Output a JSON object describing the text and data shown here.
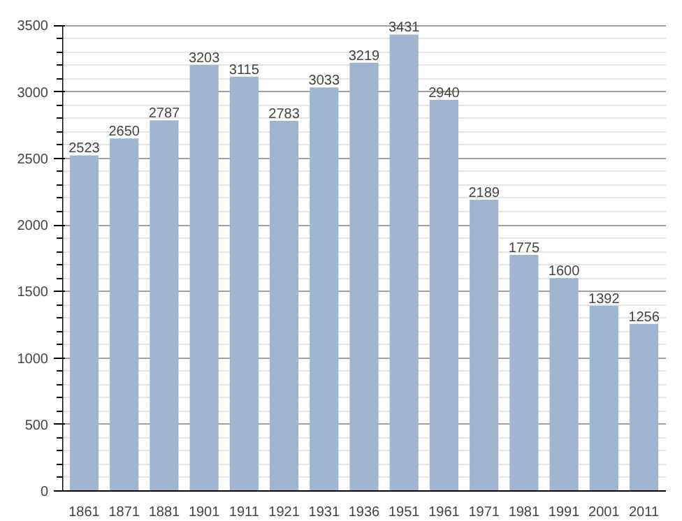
{
  "chart_data": {
    "type": "bar",
    "categories": [
      "1861",
      "1871",
      "1881",
      "1901",
      "1911",
      "1921",
      "1931",
      "1936",
      "1951",
      "1961",
      "1971",
      "1981",
      "1991",
      "2001",
      "2011"
    ],
    "values": [
      2523,
      2650,
      2787,
      3203,
      3115,
      2783,
      3033,
      3219,
      3431,
      2940,
      2189,
      1775,
      1600,
      1392,
      1256
    ],
    "color": "#a0b6d0",
    "ylim": [
      0,
      3500
    ],
    "yticks": [
      0,
      500,
      1000,
      1500,
      2000,
      2500,
      3000,
      3500
    ],
    "grid": "y",
    "data_labels": true
  }
}
